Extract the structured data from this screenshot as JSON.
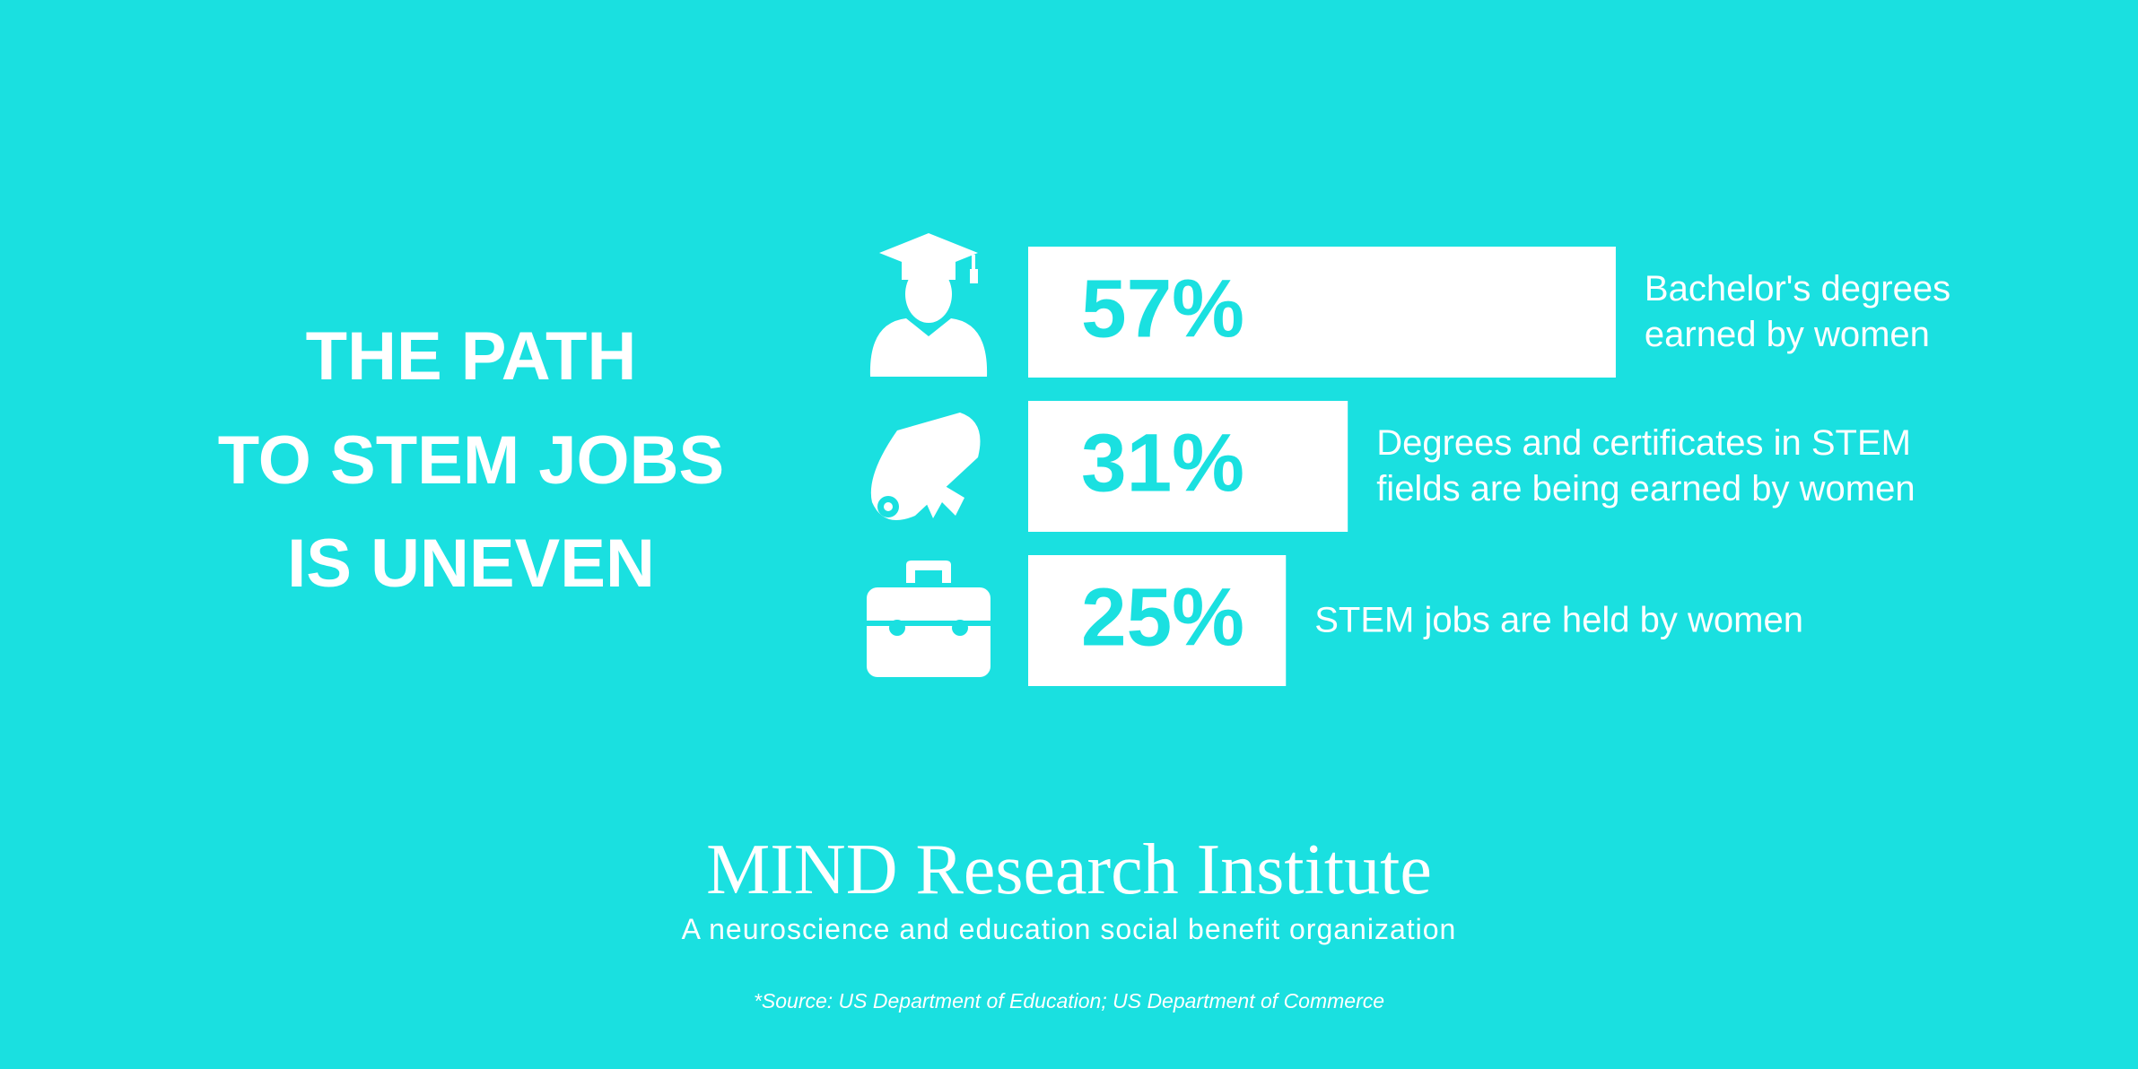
{
  "chart_data": {
    "type": "bar",
    "title": [
      "THE PATH",
      "TO STEM JOBS",
      "IS UNEVEN"
    ],
    "categories": [
      "Bachelor's degrees earned by women",
      "Degrees and certificates in STEM fields are being earned by women",
      "STEM jobs are held by women"
    ],
    "values": [
      57,
      31,
      25
    ],
    "value_labels": [
      "57%",
      "31%",
      "25%"
    ],
    "color": "#ffffff"
  },
  "footer": {
    "brand": "MIND Research Institute",
    "tagline": "A neuroscience and education social benefit organization",
    "source": "*Source: US Department of Education; US Department of Commerce"
  }
}
